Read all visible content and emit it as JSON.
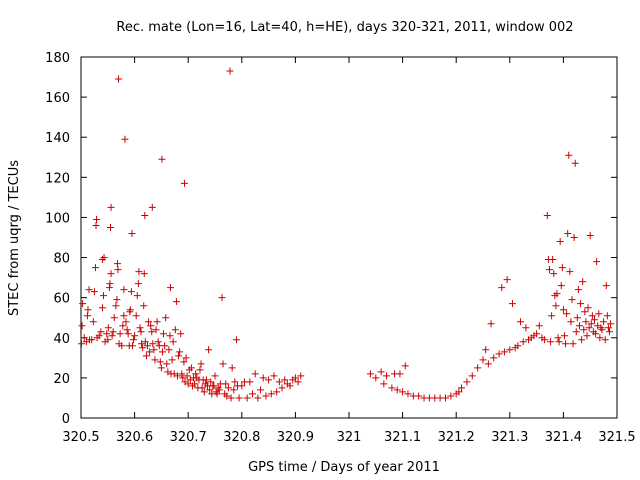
{
  "chart_data": {
    "type": "scatter",
    "title": "Rec. mate (Lon=16, Lat=40, h=HE), days 320-321, 2011, window 002",
    "xlabel": "GPS time / Days of year 2011",
    "ylabel": "STEC from uqrg / TECUs",
    "xlim": [
      320.5,
      321.5
    ],
    "ylim": [
      0,
      180
    ],
    "xticks": [
      320.5,
      320.6,
      320.7,
      320.8,
      320.9,
      321,
      321.1,
      321.2,
      321.3,
      321.4,
      321.5
    ],
    "xtick_labels": [
      "320.5",
      "320.6",
      "320.7",
      "320.8",
      "320.9",
      "321",
      "321.1",
      "321.2",
      "321.3",
      "321.4",
      "321.5"
    ],
    "yticks": [
      0,
      20,
      40,
      60,
      80,
      100,
      120,
      140,
      160,
      180
    ],
    "ytick_labels": [
      "0",
      "20",
      "40",
      "60",
      "80",
      "100",
      "120",
      "140",
      "160",
      "180"
    ],
    "grid": false,
    "marker": "+",
    "color": "#cc0000",
    "series": [
      {
        "name": "STEC",
        "points": [
          [
            320.501,
            37
          ],
          [
            320.502,
            46
          ],
          [
            320.503,
            57
          ],
          [
            320.506,
            40
          ],
          [
            320.51,
            38
          ],
          [
            320.512,
            51
          ],
          [
            320.513,
            54
          ],
          [
            320.515,
            64
          ],
          [
            320.516,
            39
          ],
          [
            320.52,
            39
          ],
          [
            320.523,
            48
          ],
          [
            320.525,
            63
          ],
          [
            320.527,
            75
          ],
          [
            320.528,
            96
          ],
          [
            320.529,
            99
          ],
          [
            320.53,
            40
          ],
          [
            320.534,
            41
          ],
          [
            320.537,
            43
          ],
          [
            320.54,
            55
          ],
          [
            320.54,
            79
          ],
          [
            320.542,
            61
          ],
          [
            320.543,
            80
          ],
          [
            320.545,
            38
          ],
          [
            320.548,
            42
          ],
          [
            320.55,
            39
          ],
          [
            320.551,
            45
          ],
          [
            320.553,
            65
          ],
          [
            320.554,
            67
          ],
          [
            320.555,
            95
          ],
          [
            320.556,
            105
          ],
          [
            320.556,
            72
          ],
          [
            320.558,
            41
          ],
          [
            320.56,
            43
          ],
          [
            320.562,
            50
          ],
          [
            320.565,
            56
          ],
          [
            320.567,
            59
          ],
          [
            320.568,
            77
          ],
          [
            320.569,
            74
          ],
          [
            320.57,
            169
          ],
          [
            320.571,
            37
          ],
          [
            320.573,
            42
          ],
          [
            320.576,
            36
          ],
          [
            320.578,
            46
          ],
          [
            320.58,
            51
          ],
          [
            320.58,
            64
          ],
          [
            320.582,
            139
          ],
          [
            320.584,
            48
          ],
          [
            320.586,
            44
          ],
          [
            320.588,
            42
          ],
          [
            320.59,
            36
          ],
          [
            320.591,
            53
          ],
          [
            320.592,
            54
          ],
          [
            320.594,
            63
          ],
          [
            320.595,
            92
          ],
          [
            320.596,
            36
          ],
          [
            320.598,
            39
          ],
          [
            320.6,
            41
          ],
          [
            320.603,
            51
          ],
          [
            320.605,
            61
          ],
          [
            320.607,
            67
          ],
          [
            320.608,
            73
          ],
          [
            320.61,
            45
          ],
          [
            320.612,
            43
          ],
          [
            320.613,
            37
          ],
          [
            320.615,
            35
          ],
          [
            320.617,
            56
          ],
          [
            320.618,
            72
          ],
          [
            320.619,
            101
          ],
          [
            320.62,
            38
          ],
          [
            320.622,
            31
          ],
          [
            320.624,
            36
          ],
          [
            320.626,
            48
          ],
          [
            320.628,
            33
          ],
          [
            320.63,
            46
          ],
          [
            320.632,
            43
          ],
          [
            320.633,
            105
          ],
          [
            320.634,
            37
          ],
          [
            320.636,
            34
          ],
          [
            320.638,
            29
          ],
          [
            320.64,
            44
          ],
          [
            320.642,
            48
          ],
          [
            320.644,
            38
          ],
          [
            320.646,
            36
          ],
          [
            320.648,
            28
          ],
          [
            320.65,
            25
          ],
          [
            320.651,
            129
          ],
          [
            320.652,
            33
          ],
          [
            320.654,
            42
          ],
          [
            320.656,
            36
          ],
          [
            320.658,
            50
          ],
          [
            320.66,
            27
          ],
          [
            320.662,
            23
          ],
          [
            320.664,
            34
          ],
          [
            320.666,
            41
          ],
          [
            320.667,
            65
          ],
          [
            320.668,
            22
          ],
          [
            320.67,
            29
          ],
          [
            320.672,
            38
          ],
          [
            320.674,
            22
          ],
          [
            320.676,
            44
          ],
          [
            320.678,
            58
          ],
          [
            320.68,
            21
          ],
          [
            320.682,
            31
          ],
          [
            320.684,
            33
          ],
          [
            320.686,
            42
          ],
          [
            320.688,
            22
          ],
          [
            320.69,
            20
          ],
          [
            320.692,
            28
          ],
          [
            320.693,
            117
          ],
          [
            320.694,
            18
          ],
          [
            320.696,
            30
          ],
          [
            320.698,
            21
          ],
          [
            320.7,
            17
          ],
          [
            320.702,
            24
          ],
          [
            320.704,
            19
          ],
          [
            320.706,
            25
          ],
          [
            320.708,
            16
          ],
          [
            320.71,
            20
          ],
          [
            320.712,
            17
          ],
          [
            320.714,
            22
          ],
          [
            320.716,
            20
          ],
          [
            320.718,
            15
          ],
          [
            320.72,
            19
          ],
          [
            320.722,
            24
          ],
          [
            320.724,
            27
          ],
          [
            320.726,
            15
          ],
          [
            320.728,
            19
          ],
          [
            320.73,
            13
          ],
          [
            320.732,
            17
          ],
          [
            320.734,
            19
          ],
          [
            320.736,
            16
          ],
          [
            320.738,
            34
          ],
          [
            320.74,
            14
          ],
          [
            320.742,
            18
          ],
          [
            320.744,
            12
          ],
          [
            320.746,
            16
          ],
          [
            320.748,
            16
          ],
          [
            320.75,
            21
          ],
          [
            320.752,
            13
          ],
          [
            320.754,
            12
          ],
          [
            320.756,
            15
          ],
          [
            320.758,
            14
          ],
          [
            320.76,
            17
          ],
          [
            320.763,
            60
          ],
          [
            320.765,
            27
          ],
          [
            320.768,
            12
          ],
          [
            320.77,
            17
          ],
          [
            320.772,
            11
          ],
          [
            320.775,
            15
          ],
          [
            320.778,
            173
          ],
          [
            320.78,
            10
          ],
          [
            320.782,
            25
          ],
          [
            320.785,
            14
          ],
          [
            320.787,
            18
          ],
          [
            320.79,
            39
          ],
          [
            320.792,
            16
          ],
          [
            320.795,
            10
          ],
          [
            320.8,
            16
          ],
          [
            320.805,
            18
          ],
          [
            320.81,
            10
          ],
          [
            320.815,
            18
          ],
          [
            320.82,
            12
          ],
          [
            320.825,
            22
          ],
          [
            320.83,
            10
          ],
          [
            320.835,
            14
          ],
          [
            320.84,
            20
          ],
          [
            320.845,
            11
          ],
          [
            320.85,
            19
          ],
          [
            320.855,
            12
          ],
          [
            320.86,
            21
          ],
          [
            320.865,
            13
          ],
          [
            320.87,
            18
          ],
          [
            320.875,
            15
          ],
          [
            320.88,
            19
          ],
          [
            320.885,
            17
          ],
          [
            320.89,
            16
          ],
          [
            320.895,
            19
          ],
          [
            320.9,
            20
          ],
          [
            320.905,
            18
          ],
          [
            320.91,
            21
          ],
          [
            321.04,
            22
          ],
          [
            321.05,
            20
          ],
          [
            321.06,
            23
          ],
          [
            321.065,
            17
          ],
          [
            321.07,
            21
          ],
          [
            321.08,
            15
          ],
          [
            321.085,
            22
          ],
          [
            321.09,
            14
          ],
          [
            321.095,
            22
          ],
          [
            321.1,
            13
          ],
          [
            321.105,
            26
          ],
          [
            321.11,
            12
          ],
          [
            321.12,
            11
          ],
          [
            321.13,
            11
          ],
          [
            321.14,
            10
          ],
          [
            321.15,
            10
          ],
          [
            321.16,
            10
          ],
          [
            321.17,
            10
          ],
          [
            321.18,
            10
          ],
          [
            321.19,
            11
          ],
          [
            321.2,
            12
          ],
          [
            321.205,
            13
          ],
          [
            321.21,
            15
          ],
          [
            321.22,
            18
          ],
          [
            321.23,
            21
          ],
          [
            321.24,
            25
          ],
          [
            321.25,
            29
          ],
          [
            321.255,
            34
          ],
          [
            321.26,
            27
          ],
          [
            321.265,
            47
          ],
          [
            321.27,
            30
          ],
          [
            321.28,
            32
          ],
          [
            321.285,
            65
          ],
          [
            321.29,
            33
          ],
          [
            321.295,
            69
          ],
          [
            321.3,
            34
          ],
          [
            321.305,
            57
          ],
          [
            321.31,
            35
          ],
          [
            321.315,
            36
          ],
          [
            321.32,
            48
          ],
          [
            321.325,
            38
          ],
          [
            321.33,
            45
          ],
          [
            321.335,
            39
          ],
          [
            321.34,
            40
          ],
          [
            321.345,
            41
          ],
          [
            321.35,
            42
          ],
          [
            321.355,
            46
          ],
          [
            321.36,
            40
          ],
          [
            321.365,
            39
          ],
          [
            321.37,
            101
          ],
          [
            321.372,
            79
          ],
          [
            321.374,
            74
          ],
          [
            321.376,
            38
          ],
          [
            321.378,
            51
          ],
          [
            321.38,
            79
          ],
          [
            321.382,
            72
          ],
          [
            321.384,
            61
          ],
          [
            321.386,
            56
          ],
          [
            321.388,
            62
          ],
          [
            321.39,
            40
          ],
          [
            321.392,
            38
          ],
          [
            321.394,
            88
          ],
          [
            321.396,
            66
          ],
          [
            321.398,
            75
          ],
          [
            321.4,
            54
          ],
          [
            321.402,
            41
          ],
          [
            321.404,
            37
          ],
          [
            321.406,
            52
          ],
          [
            321.408,
            92
          ],
          [
            321.41,
            131
          ],
          [
            321.412,
            73
          ],
          [
            321.414,
            48
          ],
          [
            321.416,
            59
          ],
          [
            321.418,
            37
          ],
          [
            321.42,
            90
          ],
          [
            321.422,
            127
          ],
          [
            321.424,
            43
          ],
          [
            321.426,
            50
          ],
          [
            321.428,
            64
          ],
          [
            321.43,
            46
          ],
          [
            321.432,
            57
          ],
          [
            321.434,
            39
          ],
          [
            321.436,
            68
          ],
          [
            321.438,
            44
          ],
          [
            321.44,
            53
          ],
          [
            321.442,
            48
          ],
          [
            321.444,
            41
          ],
          [
            321.446,
            55
          ],
          [
            321.448,
            45
          ],
          [
            321.45,
            91
          ],
          [
            321.452,
            47
          ],
          [
            321.454,
            51
          ],
          [
            321.456,
            43
          ],
          [
            321.458,
            49
          ],
          [
            321.46,
            42
          ],
          [
            321.462,
            78
          ],
          [
            321.464,
            46
          ],
          [
            321.466,
            52
          ],
          [
            321.468,
            40
          ],
          [
            321.47,
            45
          ],
          [
            321.472,
            44
          ],
          [
            321.475,
            48
          ],
          [
            321.478,
            39
          ],
          [
            321.48,
            66
          ],
          [
            321.482,
            51
          ],
          [
            321.484,
            45
          ],
          [
            321.486,
            43
          ],
          [
            321.488,
            47
          ]
        ]
      }
    ]
  }
}
